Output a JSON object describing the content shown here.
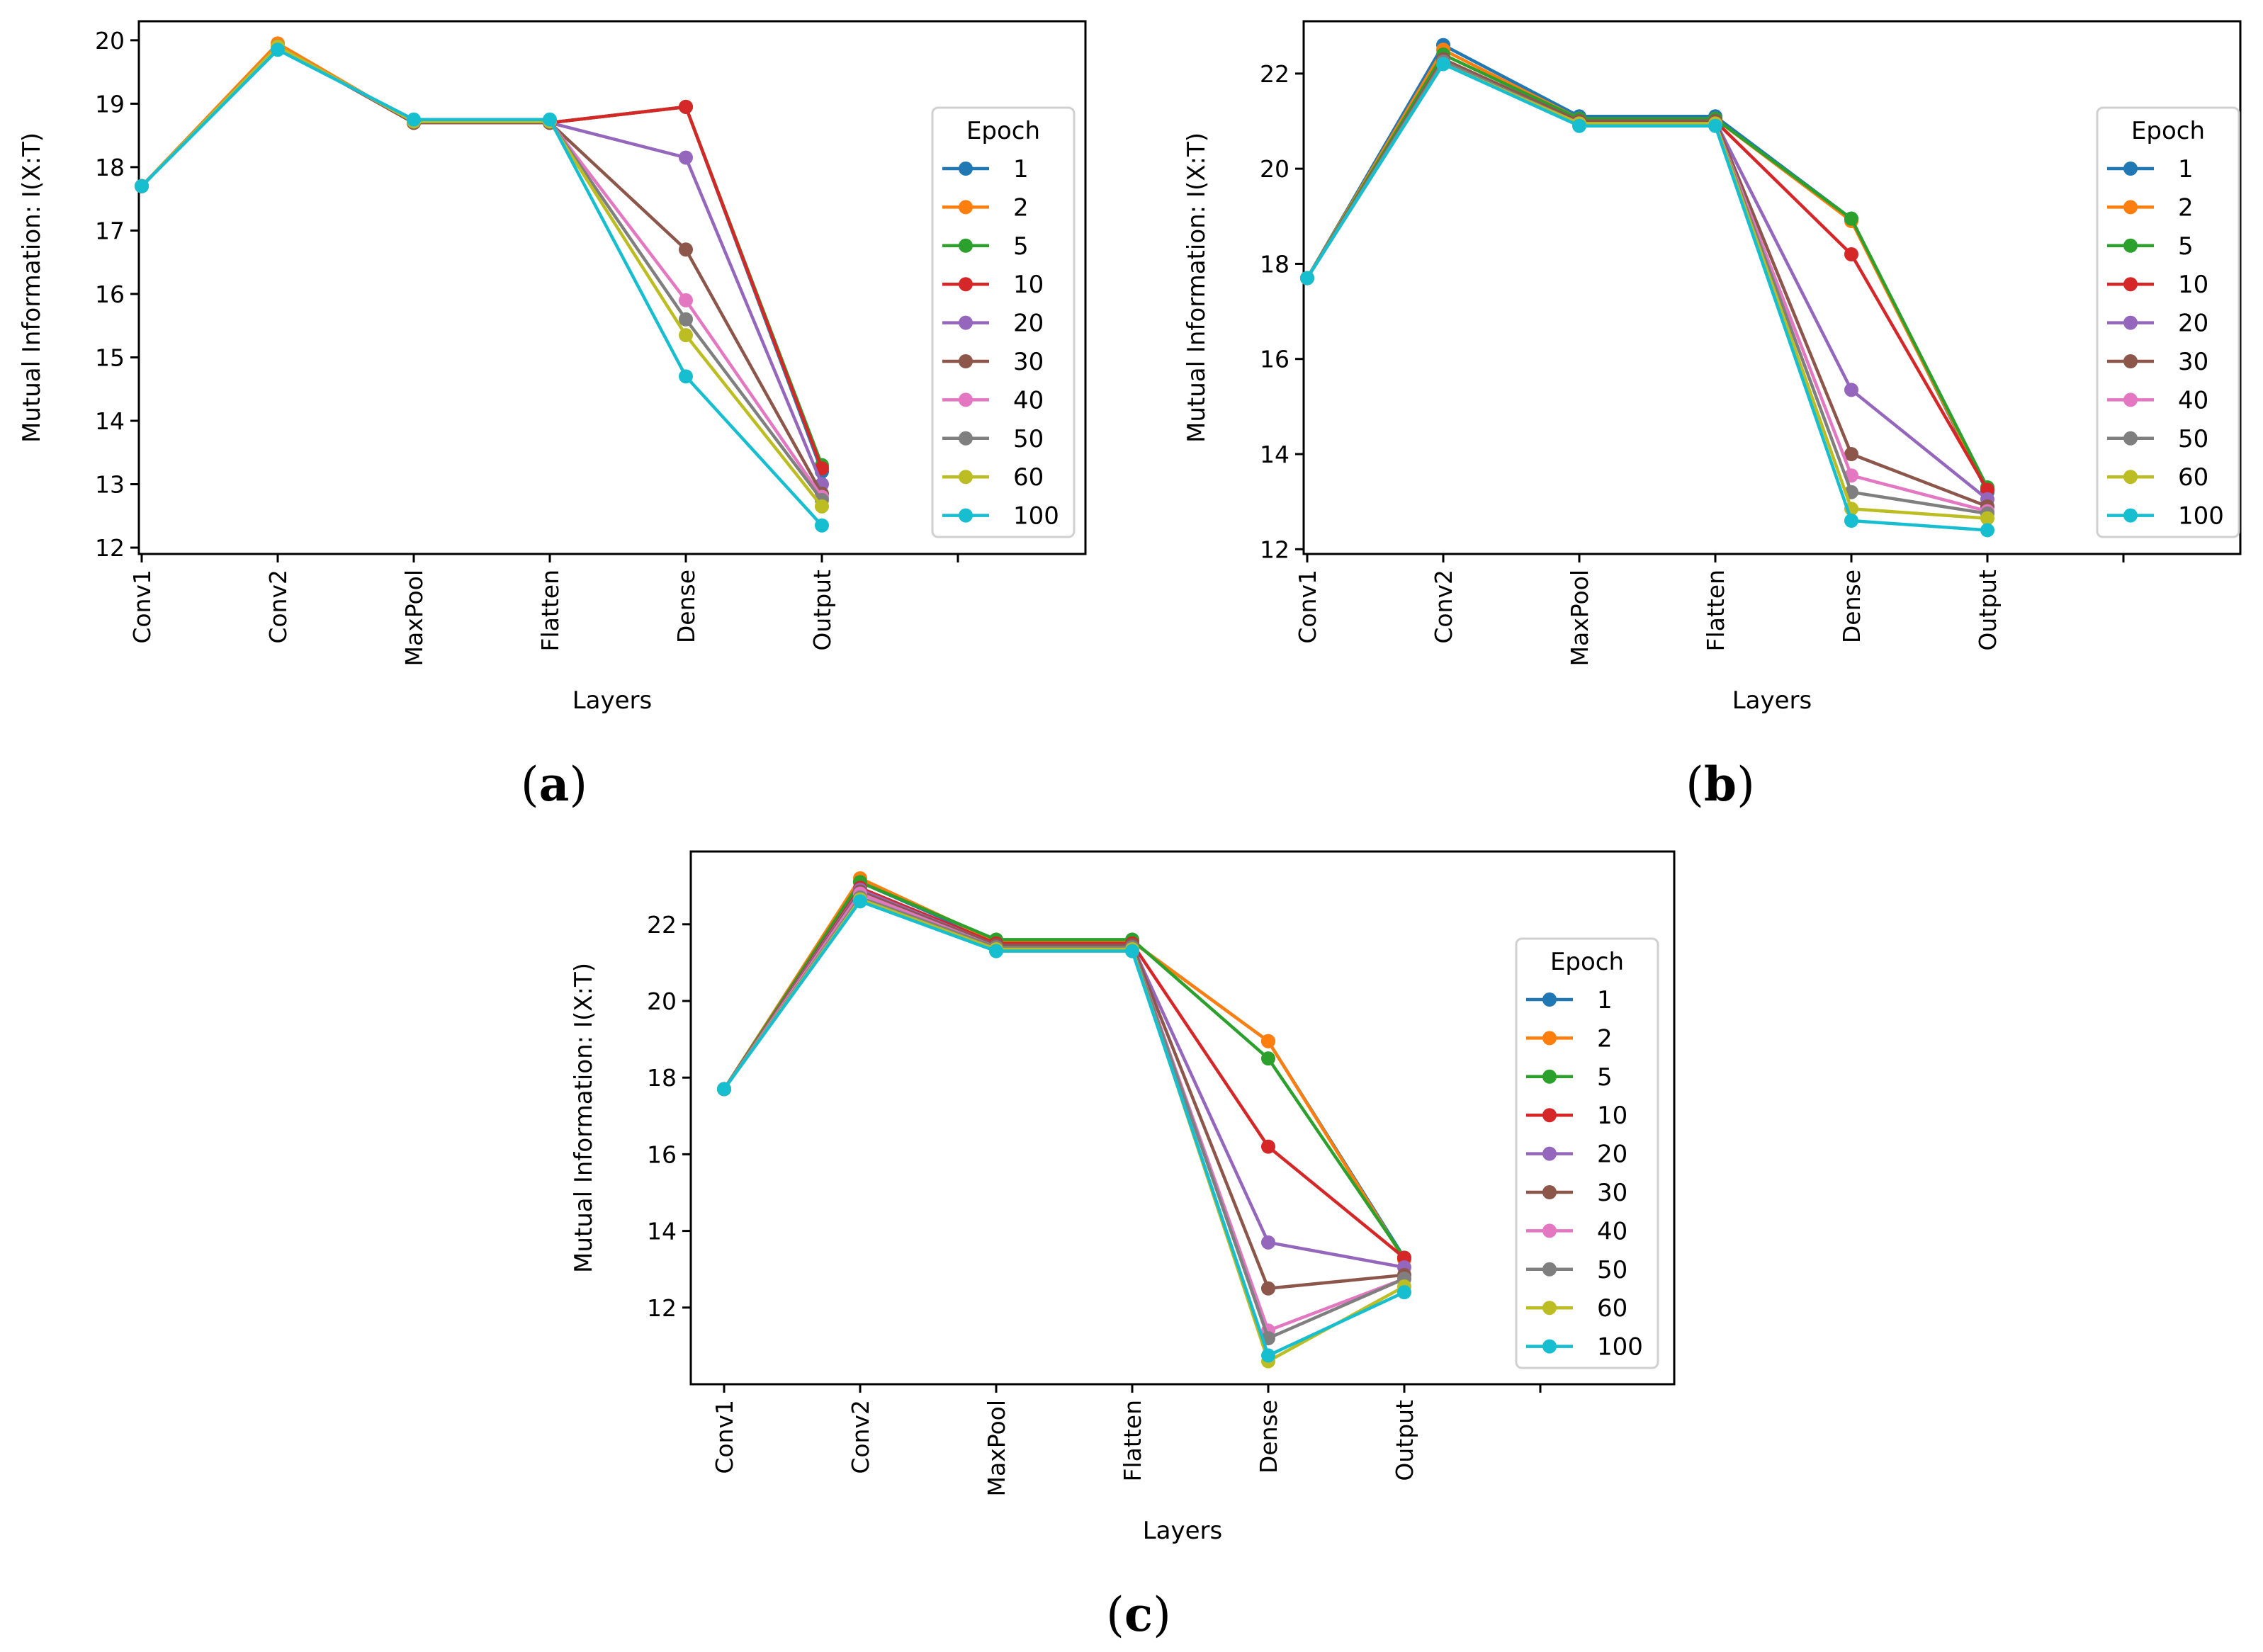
{
  "colors": {
    "axis": "#000000",
    "series": [
      "#1f77b4",
      "#ff7f0e",
      "#2ca02c",
      "#d62728",
      "#9467bd",
      "#8c564b",
      "#e377c2",
      "#7f7f7f",
      "#bcbd22",
      "#17becf"
    ]
  },
  "chart_data": [
    {
      "panel": "a",
      "type": "line",
      "categories": [
        "Conv1",
        "Conv2",
        "MaxPool",
        "Flatten",
        "Dense",
        "Output"
      ],
      "xlabel": "Layers",
      "ylabel": "Mutual Information: I(X:T)",
      "ylim": [
        11.9,
        20.3
      ],
      "yticks": [
        12,
        13,
        14,
        15,
        16,
        17,
        18,
        19,
        20
      ],
      "legend_title": "Epoch",
      "legend_position": "right",
      "series": [
        {
          "name": "1",
          "values": [
            17.7,
            19.9,
            18.7,
            18.7,
            18.95,
            13.2
          ]
        },
        {
          "name": "2",
          "values": [
            17.7,
            19.95,
            18.7,
            18.7,
            18.95,
            13.25
          ]
        },
        {
          "name": "5",
          "values": [
            17.7,
            19.9,
            18.7,
            18.7,
            18.95,
            13.3
          ]
        },
        {
          "name": "10",
          "values": [
            17.7,
            19.9,
            18.7,
            18.7,
            18.95,
            13.25
          ]
        },
        {
          "name": "20",
          "values": [
            17.7,
            19.9,
            18.7,
            18.7,
            18.15,
            13.0
          ]
        },
        {
          "name": "30",
          "values": [
            17.7,
            19.9,
            18.7,
            18.7,
            16.7,
            12.85
          ]
        },
        {
          "name": "40",
          "values": [
            17.7,
            19.9,
            18.72,
            18.72,
            15.9,
            12.8
          ]
        },
        {
          "name": "50",
          "values": [
            17.7,
            19.9,
            18.72,
            18.72,
            15.6,
            12.75
          ]
        },
        {
          "name": "60",
          "values": [
            17.7,
            19.9,
            18.72,
            18.72,
            15.35,
            12.65
          ]
        },
        {
          "name": "100",
          "values": [
            17.7,
            19.85,
            18.75,
            18.75,
            14.7,
            12.35
          ]
        }
      ]
    },
    {
      "panel": "b",
      "type": "line",
      "categories": [
        "Conv1",
        "Conv2",
        "MaxPool",
        "Flatten",
        "Dense",
        "Output"
      ],
      "xlabel": "Layers",
      "ylabel": "Mutual Information: I(X:T)",
      "ylim": [
        11.9,
        23.1
      ],
      "yticks": [
        12,
        14,
        16,
        18,
        20,
        22
      ],
      "legend_title": "Epoch",
      "legend_position": "right",
      "series": [
        {
          "name": "1",
          "values": [
            17.7,
            22.6,
            21.1,
            21.1,
            18.95,
            13.2
          ]
        },
        {
          "name": "2",
          "values": [
            17.7,
            22.5,
            21.05,
            21.05,
            18.9,
            13.25
          ]
        },
        {
          "name": "5",
          "values": [
            17.7,
            22.4,
            21.05,
            21.05,
            18.95,
            13.3
          ]
        },
        {
          "name": "10",
          "values": [
            17.7,
            22.3,
            21.0,
            21.0,
            18.2,
            13.25
          ]
        },
        {
          "name": "20",
          "values": [
            17.7,
            22.3,
            21.0,
            21.0,
            15.35,
            13.05
          ]
        },
        {
          "name": "30",
          "values": [
            17.7,
            22.3,
            21.0,
            21.0,
            14.0,
            12.9
          ]
        },
        {
          "name": "40",
          "values": [
            17.7,
            22.25,
            20.95,
            20.95,
            13.55,
            12.8
          ]
        },
        {
          "name": "50",
          "values": [
            17.7,
            22.25,
            20.95,
            20.95,
            13.2,
            12.75
          ]
        },
        {
          "name": "60",
          "values": [
            17.7,
            22.2,
            20.95,
            20.95,
            12.85,
            12.65
          ]
        },
        {
          "name": "100",
          "values": [
            17.7,
            22.2,
            20.9,
            20.9,
            12.6,
            12.4
          ]
        }
      ]
    },
    {
      "panel": "c",
      "type": "line",
      "categories": [
        "Conv1",
        "Conv2",
        "MaxPool",
        "Flatten",
        "Dense",
        "Output"
      ],
      "xlabel": "Layers",
      "ylabel": "Mutual Information: I(X:T)",
      "ylim": [
        10.0,
        23.9
      ],
      "yticks": [
        12,
        14,
        16,
        18,
        20,
        22
      ],
      "legend_title": "Epoch",
      "legend_position": "right",
      "series": [
        {
          "name": "1",
          "values": [
            17.7,
            23.1,
            21.55,
            21.55,
            18.95,
            13.3
          ]
        },
        {
          "name": "2",
          "values": [
            17.7,
            23.2,
            21.55,
            21.55,
            18.95,
            13.25
          ]
        },
        {
          "name": "5",
          "values": [
            17.7,
            23.1,
            21.6,
            21.6,
            18.5,
            13.3
          ]
        },
        {
          "name": "10",
          "values": [
            17.7,
            22.95,
            21.5,
            21.5,
            16.2,
            13.3
          ]
        },
        {
          "name": "20",
          "values": [
            17.7,
            22.9,
            21.45,
            21.45,
            13.7,
            13.05
          ]
        },
        {
          "name": "30",
          "values": [
            17.7,
            22.85,
            21.45,
            21.45,
            12.5,
            12.85
          ]
        },
        {
          "name": "40",
          "values": [
            17.7,
            22.8,
            21.4,
            21.4,
            11.4,
            12.75
          ]
        },
        {
          "name": "50",
          "values": [
            17.7,
            22.7,
            21.4,
            21.4,
            11.2,
            12.75
          ]
        },
        {
          "name": "60",
          "values": [
            17.7,
            22.65,
            21.35,
            21.35,
            10.6,
            12.55
          ]
        },
        {
          "name": "100",
          "values": [
            17.7,
            22.6,
            21.3,
            21.3,
            10.75,
            12.4
          ]
        }
      ]
    }
  ]
}
